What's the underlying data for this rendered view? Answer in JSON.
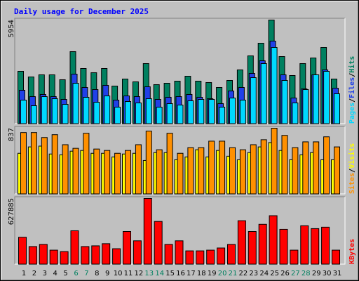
{
  "chart_data": [
    {
      "type": "bar",
      "title": "Daily usage for December 2025",
      "ylim": [
        0,
        5954
      ],
      "yticks": [
        5954
      ],
      "legend_separator": "/",
      "series": [
        {
          "name": "Hits",
          "color": "#008060",
          "values": [
            3017,
            2695,
            2816,
            2816,
            2535,
            4144,
            3178,
            2937,
            3178,
            2172,
            2575,
            2414,
            3460,
            2253,
            2333,
            2454,
            2736,
            2454,
            2374,
            2092,
            2494,
            3098,
            3902,
            4627,
            5954,
            3862,
            2776,
            3460,
            3782,
            4385,
            2575
          ]
        },
        {
          "name": "Files",
          "color": "#2040e8",
          "values": [
            1931,
            1569,
            1690,
            1569,
            1408,
            2856,
            2092,
            1971,
            2213,
            1368,
            1609,
            1569,
            2132,
            1408,
            1529,
            1569,
            1690,
            1529,
            1448,
            1167,
            1891,
            2092,
            2897,
            3621,
            4747,
            2816,
            1488,
            2011,
            2816,
            3098,
            2052
          ]
        },
        {
          "name": "Pages",
          "color": "#00d8ff",
          "values": [
            1368,
            1046,
            1569,
            1448,
            1126,
            2333,
            1529,
            1247,
            1609,
            966,
            1287,
            1207,
            1448,
            966,
            1167,
            1086,
            1328,
            1408,
            1408,
            966,
            1488,
            1368,
            2655,
            3460,
            4385,
            2494,
            1207,
            1971,
            2816,
            3017,
            1730
          ]
        }
      ]
    },
    {
      "type": "bar",
      "ylim": [
        0,
        837
      ],
      "yticks": [
        837
      ],
      "legend_separator": "/",
      "series": [
        {
          "name": "Visits",
          "color": "#ffff00",
          "values": [
            519,
            600,
            610,
            510,
            500,
            546,
            555,
            519,
            519,
            473,
            510,
            519,
            428,
            528,
            528,
            437,
            473,
            564,
            473,
            555,
            482,
            437,
            528,
            600,
            655,
            555,
            437,
            500,
            528,
            437,
            437
          ]
        },
        {
          "name": "Sites",
          "color": "#ff9000",
          "values": [
            782,
            782,
            719,
            755,
            628,
            582,
            773,
            573,
            555,
            519,
            555,
            628,
            800,
            564,
            773,
            519,
            591,
            591,
            673,
            673,
            591,
            564,
            628,
            691,
            837,
            746,
            591,
            664,
            664,
            728,
            600
          ]
        }
      ]
    },
    {
      "type": "bar",
      "ylim": [
        0,
        627885
      ],
      "yticks": [
        627885
      ],
      "categories": [
        "1",
        "2",
        "3",
        "4",
        "5",
        "6",
        "7",
        "8",
        "9",
        "10",
        "11",
        "12",
        "13",
        "14",
        "15",
        "16",
        "17",
        "18",
        "19",
        "20",
        "21",
        "22",
        "23",
        "24",
        "25",
        "26",
        "27",
        "28",
        "29",
        "30",
        "31"
      ],
      "category_colors": [
        "#000000",
        "#000000",
        "#000000",
        "#000000",
        "#000000",
        "#008060",
        "#008060",
        "#000000",
        "#000000",
        "#000000",
        "#000000",
        "#000000",
        "#008060",
        "#008060",
        "#000000",
        "#000000",
        "#000000",
        "#000000",
        "#000000",
        "#008060",
        "#008060",
        "#000000",
        "#000000",
        "#000000",
        "#000000",
        "#000000",
        "#008060",
        "#008060",
        "#000000",
        "#000000",
        "#000000"
      ],
      "series": [
        {
          "name": "KBytes",
          "color": "#ff0000",
          "values": [
            259350,
            170625,
            191100,
            136500,
            122850,
            320775,
            170625,
            177450,
            197925,
            150150,
            313950,
            225225,
            627885,
            409500,
            191100,
            225225,
            129675,
            129675,
            136500,
            156975,
            191100,
            416325,
            313950,
            382200,
            464100,
            334425,
            136500,
            368550,
            341250,
            354900,
            136500
          ]
        }
      ]
    }
  ]
}
